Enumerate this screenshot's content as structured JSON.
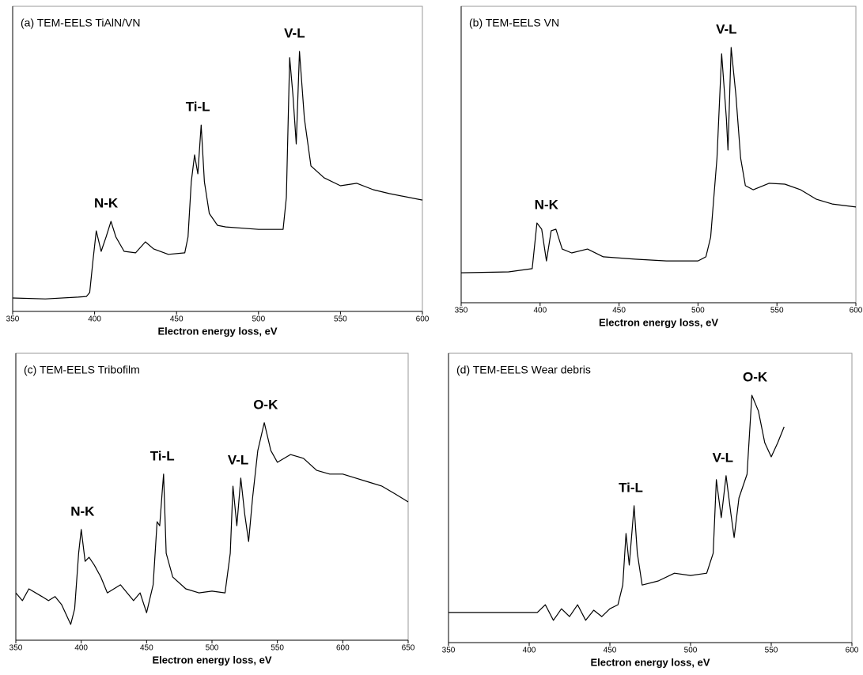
{
  "chart_data": [
    {
      "type": "line",
      "title": "(a) TEM-EELS TiAlN/VN",
      "xlabel": "Electron energy loss, eV",
      "color": "#000000",
      "xlim": [
        350,
        600
      ],
      "xticks": [
        350,
        400,
        450,
        500,
        550,
        600
      ],
      "ylim": [
        0,
        100
      ],
      "x": [
        350,
        370,
        390,
        395,
        397,
        399,
        401,
        404,
        407,
        410,
        413,
        418,
        425,
        431,
        436,
        445,
        455,
        457,
        459,
        461,
        463,
        465,
        467,
        470,
        475,
        480,
        500,
        515,
        517,
        519,
        521,
        523,
        525,
        528,
        532,
        540,
        550,
        560,
        570,
        580,
        600
      ],
      "values": [
        4.4,
        4.1,
        4.7,
        4.9,
        6.2,
        16.6,
        26.4,
        19.7,
        24.4,
        29.5,
        24.4,
        19.7,
        19.2,
        22.8,
        20.5,
        18.7,
        19.2,
        24.4,
        42.5,
        51.3,
        45.1,
        61.1,
        42.5,
        32.1,
        28.2,
        27.7,
        26.9,
        26.9,
        37.3,
        83.2,
        71.0,
        54.9,
        85.2,
        63.2,
        47.7,
        43.8,
        41.2,
        42.0,
        39.9,
        38.6,
        36.5
      ],
      "annotations": [
        {
          "text": "N-K",
          "x": 407
        },
        {
          "text": "Ti-L",
          "x": 463
        },
        {
          "text": "V-L",
          "x": 522
        }
      ]
    },
    {
      "type": "line",
      "title": "(b) TEM-EELS VN",
      "xlabel": "Electron energy loss, eV",
      "color": "#000000",
      "xlim": [
        350,
        600
      ],
      "xticks": [
        350,
        400,
        450,
        500,
        550,
        600
      ],
      "ylim": [
        0,
        100
      ],
      "x": [
        350,
        380,
        395,
        398,
        401,
        404,
        407,
        410,
        414,
        420,
        430,
        440,
        460,
        480,
        500,
        505,
        508,
        512,
        515,
        518,
        519,
        521,
        524,
        527,
        530,
        535,
        545,
        555,
        565,
        575,
        585,
        600
      ],
      "values": [
        10.1,
        10.4,
        11.5,
        26.9,
        24.8,
        14.1,
        24.3,
        24.8,
        18.1,
        16.8,
        18.1,
        15.5,
        14.7,
        14.1,
        14.1,
        15.5,
        22.1,
        48.8,
        84.0,
        62.1,
        51.5,
        86.1,
        70.1,
        48.8,
        39.5,
        38.1,
        40.3,
        40.0,
        38.1,
        34.9,
        33.3,
        32.3
      ],
      "annotations": [
        {
          "text": "N-K",
          "x": 404
        },
        {
          "text": "V-L",
          "x": 518
        }
      ]
    },
    {
      "type": "line",
      "title": "(c) TEM-EELS Tribofilm",
      "xlabel": "Electron energy loss, eV",
      "color": "#000000",
      "xlim": [
        350,
        650
      ],
      "xticks": [
        350,
        400,
        450,
        500,
        550,
        600,
        650
      ],
      "ylim": [
        0,
        100
      ],
      "x": [
        350,
        355,
        360,
        370,
        375,
        380,
        385,
        392,
        395,
        398,
        400,
        403,
        406,
        410,
        415,
        420,
        430,
        440,
        445,
        450,
        455,
        458,
        460,
        462,
        463,
        465,
        470,
        480,
        490,
        500,
        510,
        514,
        516,
        519,
        522,
        525,
        528,
        531,
        535,
        540,
        545,
        550,
        560,
        570,
        580,
        590,
        600,
        610,
        620,
        630,
        640,
        650
      ],
      "values": [
        16.5,
        13.8,
        17.9,
        15.2,
        13.8,
        15.2,
        12.4,
        5.5,
        11.0,
        30.3,
        38.6,
        27.5,
        28.9,
        26.2,
        22.0,
        16.5,
        19.3,
        13.8,
        16.5,
        9.6,
        19.3,
        41.3,
        39.9,
        52.3,
        57.9,
        30.3,
        22.0,
        17.9,
        16.5,
        17.1,
        16.5,
        30.3,
        53.7,
        39.9,
        56.5,
        44.1,
        34.4,
        49.6,
        66.1,
        75.8,
        66.1,
        62.0,
        64.7,
        63.4,
        59.2,
        57.9,
        57.9,
        56.5,
        55.1,
        53.7,
        51.0,
        48.2
      ],
      "annotations": [
        {
          "text": "N-K",
          "x": 401
        },
        {
          "text": "Ti-L",
          "x": 462
        },
        {
          "text": "V-L",
          "x": 520
        },
        {
          "text": "O-K",
          "x": 541
        }
      ]
    },
    {
      "type": "line",
      "title": "(d) TEM-EELS Wear debris",
      "xlabel": "Electron energy loss, eV",
      "color": "#000000",
      "xlim": [
        350,
        600
      ],
      "xticks": [
        350,
        400,
        450,
        500,
        550,
        600
      ],
      "ylim": [
        0,
        100
      ],
      "x": [
        350,
        405,
        410,
        415,
        420,
        425,
        430,
        435,
        440,
        445,
        450,
        455,
        458,
        460,
        462,
        465,
        467,
        470,
        480,
        490,
        500,
        510,
        514,
        516,
        519,
        522,
        525,
        527,
        530,
        535,
        538,
        542,
        546,
        550,
        554,
        558
      ],
      "values": [
        10.4,
        10.4,
        13.1,
        7.7,
        11.7,
        9.0,
        13.1,
        7.7,
        11.2,
        9.0,
        11.7,
        13.1,
        19.9,
        37.7,
        26.8,
        47.3,
        30.9,
        19.9,
        21.3,
        24.0,
        23.2,
        24.0,
        30.9,
        56.3,
        43.2,
        57.7,
        44.5,
        36.3,
        50.0,
        58.2,
        85.5,
        80.1,
        69.1,
        64.2,
        69.1,
        74.6
      ],
      "annotations": [
        {
          "text": "Ti-L",
          "x": 463
        },
        {
          "text": "V-L",
          "x": 520
        },
        {
          "text": "O-K",
          "x": 540
        }
      ]
    }
  ]
}
